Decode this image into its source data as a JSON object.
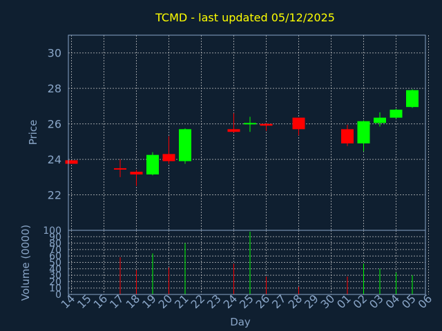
{
  "colors": {
    "background": "#0f1f30",
    "title": "#ffff00",
    "axis": "#8aa6c8",
    "grid": "#c8c8c8",
    "up": "#00ff00",
    "down": "#ff0000"
  },
  "chart_data": [
    {
      "type": "candlestick",
      "title": "TCMD - last updated 05/12/2025",
      "ylabel": "Price",
      "ylim": [
        20,
        31
      ],
      "yticks": [
        22,
        24,
        26,
        28,
        30
      ],
      "grid": true,
      "xticks": [
        "14",
        "15",
        "16",
        "17",
        "18",
        "19",
        "20",
        "21",
        "22",
        "23",
        "24",
        "25",
        "26",
        "27",
        "28",
        "29",
        "30",
        "01",
        "02",
        "03",
        "04",
        "05",
        "06"
      ],
      "candles": [
        {
          "x": 0,
          "open": 23.95,
          "close": 23.75,
          "high": 23.95,
          "low": 23.75
        },
        {
          "x": 3,
          "open": 23.5,
          "close": 23.45,
          "high": 24.0,
          "low": 23.0
        },
        {
          "x": 4,
          "open": 23.3,
          "close": 23.15,
          "high": 23.4,
          "low": 22.5
        },
        {
          "x": 5,
          "open": 23.15,
          "close": 24.25,
          "high": 24.4,
          "low": 23.1
        },
        {
          "x": 6,
          "open": 24.3,
          "close": 23.9,
          "high": 25.3,
          "low": 23.75
        },
        {
          "x": 7,
          "open": 23.9,
          "close": 25.7,
          "high": 25.75,
          "low": 23.75
        },
        {
          "x": 10,
          "open": 25.7,
          "close": 25.55,
          "high": 26.6,
          "low": 25.5
        },
        {
          "x": 11,
          "open": 26.0,
          "close": 26.05,
          "high": 26.4,
          "low": 25.55
        },
        {
          "x": 12,
          "open": 26.0,
          "close": 25.9,
          "high": 26.05,
          "low": 25.6
        },
        {
          "x": 14,
          "open": 26.35,
          "close": 25.7,
          "high": 26.35,
          "low": 25.35
        },
        {
          "x": 17,
          "open": 25.7,
          "close": 24.9,
          "high": 25.95,
          "low": 24.75
        },
        {
          "x": 18,
          "open": 24.9,
          "close": 26.15,
          "high": 26.2,
          "low": 24.45
        },
        {
          "x": 19,
          "open": 26.05,
          "close": 26.35,
          "high": 26.65,
          "low": 25.85
        },
        {
          "x": 20,
          "open": 26.35,
          "close": 26.8,
          "high": 26.85,
          "low": 26.3
        },
        {
          "x": 21,
          "open": 26.95,
          "close": 27.9,
          "high": 27.95,
          "low": 26.9
        }
      ]
    },
    {
      "type": "bar",
      "ylabel": "Volume (0000)",
      "xlabel": "Day",
      "ylim": [
        0,
        100
      ],
      "yticks": [
        0,
        10,
        20,
        30,
        40,
        50,
        60,
        70,
        80,
        90,
        100
      ],
      "grid": true,
      "bars": [
        {
          "x": 3,
          "value": 58,
          "dir": "down"
        },
        {
          "x": 4,
          "value": 38,
          "dir": "down"
        },
        {
          "x": 5,
          "value": 64,
          "dir": "up"
        },
        {
          "x": 6,
          "value": 42,
          "dir": "down"
        },
        {
          "x": 7,
          "value": 80,
          "dir": "up"
        },
        {
          "x": 10,
          "value": 48,
          "dir": "down"
        },
        {
          "x": 11,
          "value": 98,
          "dir": "up"
        },
        {
          "x": 12,
          "value": 28,
          "dir": "down"
        },
        {
          "x": 14,
          "value": 12,
          "dir": "down"
        },
        {
          "x": 17,
          "value": 28,
          "dir": "down"
        },
        {
          "x": 18,
          "value": 48,
          "dir": "up"
        },
        {
          "x": 19,
          "value": 40,
          "dir": "up"
        },
        {
          "x": 20,
          "value": 34,
          "dir": "up"
        },
        {
          "x": 21,
          "value": 30,
          "dir": "up"
        }
      ]
    }
  ]
}
